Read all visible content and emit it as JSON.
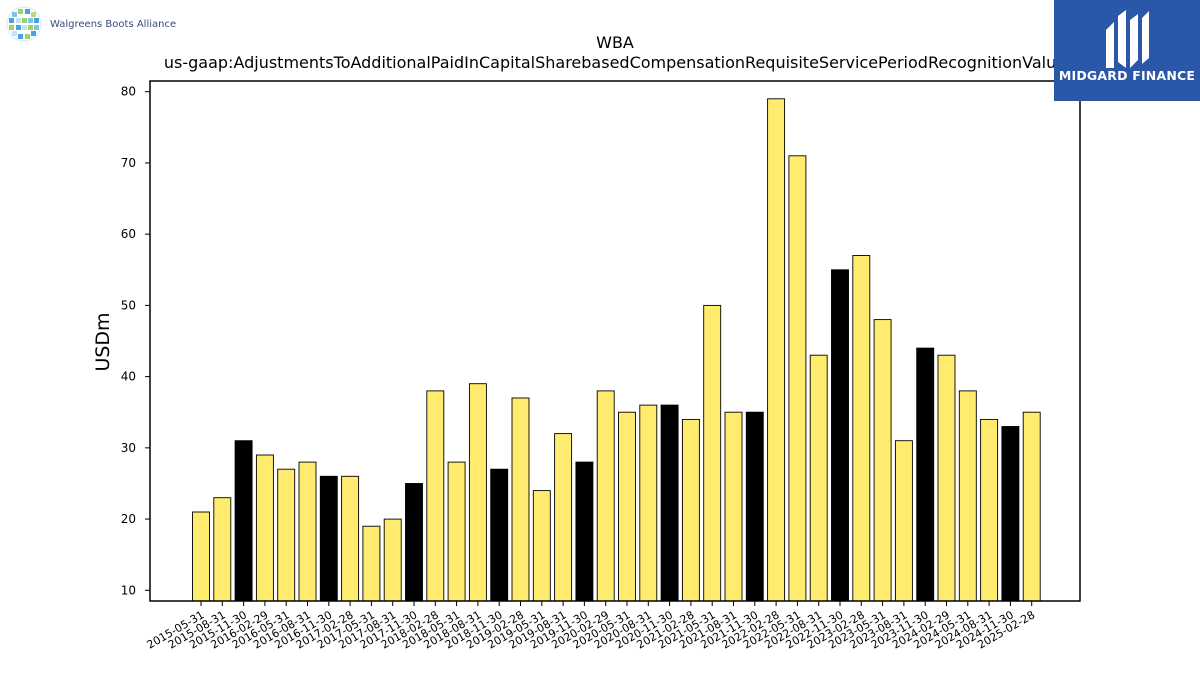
{
  "logos": {
    "left_text": "Walgreens Boots Alliance",
    "right_text": "MIDGARD FINANCE"
  },
  "colors": {
    "bar_yellow": "#ffec6e",
    "bar_black": "#000000",
    "logo_right_bg": "#2b57a8"
  },
  "chart_data": {
    "type": "bar",
    "title": "WBA",
    "subtitle": "us-gaap:AdjustmentsToAdditionalPaidInCapitalSharebasedCompensationRequisiteServicePeriodRecognitionValue",
    "xlabel": "",
    "ylabel": "USDm",
    "ylim": [
      8.5,
      81.5
    ],
    "yticks": [
      10,
      20,
      30,
      40,
      50,
      60,
      70,
      80
    ],
    "grid": false,
    "categories": [
      "2015-05-31",
      "2015-08-31",
      "2015-11-30",
      "2016-02-29",
      "2016-05-31",
      "2016-08-31",
      "2016-11-30",
      "2017-02-28",
      "2017-05-31",
      "2017-08-31",
      "2017-11-30",
      "2018-02-28",
      "2018-05-31",
      "2018-08-31",
      "2018-11-30",
      "2019-02-28",
      "2019-05-31",
      "2019-08-31",
      "2019-11-30",
      "2020-02-29",
      "2020-05-31",
      "2020-08-31",
      "2020-11-30",
      "2021-02-28",
      "2021-05-31",
      "2021-08-31",
      "2021-11-30",
      "2022-02-28",
      "2022-05-31",
      "2022-08-31",
      "2022-11-30",
      "2023-02-28",
      "2023-05-31",
      "2023-08-31",
      "2023-11-30",
      "2024-02-29",
      "2024-05-31",
      "2024-08-31",
      "2024-11-30",
      "2025-02-28"
    ],
    "values": [
      21,
      23,
      31,
      29,
      27,
      28,
      26,
      26,
      19,
      20,
      25,
      38,
      28,
      39,
      27,
      37,
      24,
      32,
      28,
      38,
      35,
      36,
      36,
      34,
      50,
      35,
      35,
      79,
      71,
      43,
      55,
      57,
      48,
      31,
      44,
      43,
      38,
      34,
      33,
      35
    ],
    "highlight": [
      false,
      false,
      true,
      false,
      false,
      false,
      true,
      false,
      false,
      false,
      true,
      false,
      false,
      false,
      true,
      false,
      false,
      false,
      true,
      false,
      false,
      false,
      true,
      false,
      false,
      false,
      true,
      false,
      false,
      false,
      true,
      false,
      false,
      false,
      true,
      false,
      false,
      false,
      true,
      false
    ]
  }
}
